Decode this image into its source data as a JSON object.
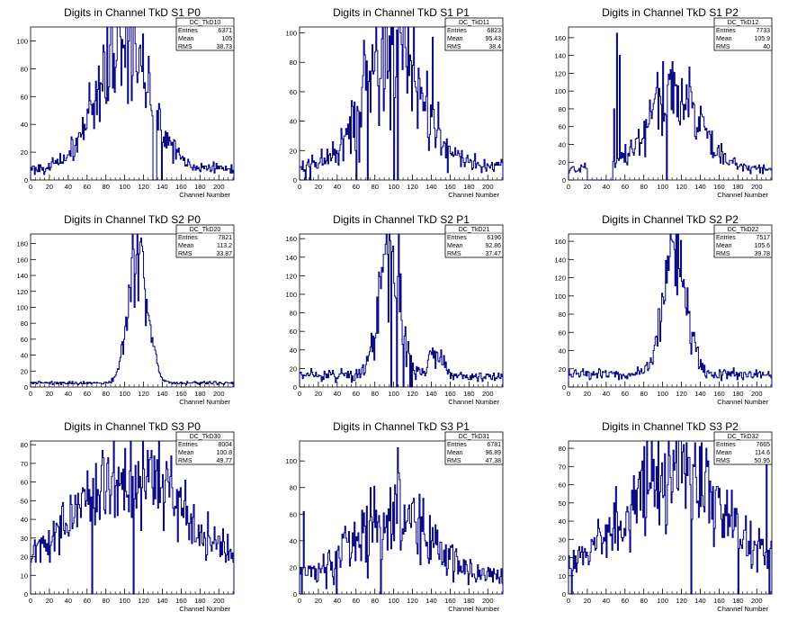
{
  "style": {
    "line_color": "#00007f",
    "axis_color": "#000000",
    "background": "#ffffff"
  },
  "chart_data": [
    {
      "type": "histogram",
      "title": "Digits in Channel TkD S1 P0",
      "xlabel": "Channel Number",
      "xlim": [
        0,
        216
      ],
      "ylim": [
        0,
        110
      ],
      "xticks": [
        0,
        20,
        40,
        60,
        80,
        100,
        120,
        140,
        160,
        180,
        200
      ],
      "yticks": [
        0,
        20,
        40,
        60,
        80,
        100
      ],
      "stats": {
        "name": "DC_TkD10",
        "entries": "6371",
        "mean": "105",
        "rms": "38.73"
      },
      "profile": {
        "bins": 216,
        "peaks": [
          [
            98,
            92,
            28
          ]
        ],
        "baseline": 8,
        "noise": 0.22,
        "spikes": [
          [
            128,
            50
          ],
          [
            136,
            55
          ]
        ],
        "zeros": [
          130,
          131,
          132,
          133,
          139
        ]
      }
    },
    {
      "type": "histogram",
      "title": "Digits in Channel TkD S1 P1",
      "xlabel": "Channel Number",
      "xlim": [
        0,
        216
      ],
      "ylim": [
        0,
        104
      ],
      "xticks": [
        0,
        20,
        40,
        60,
        80,
        100,
        120,
        140,
        160,
        180,
        200
      ],
      "yticks": [
        0,
        20,
        40,
        60,
        80,
        100
      ],
      "stats": {
        "name": "DC_TkD11",
        "entries": "6823",
        "mean": "95.43",
        "rms": "38.4"
      },
      "profile": {
        "bins": 216,
        "peaks": [
          [
            100,
            80,
            30
          ]
        ],
        "baseline": 10,
        "noise": 0.28,
        "spikes": [
          [
            141,
            97
          ],
          [
            98,
            92
          ]
        ],
        "zeros": [
          60,
          72,
          100,
          104,
          6,
          11
        ]
      }
    },
    {
      "type": "histogram",
      "title": "Digits in Channel TkD S1 P2",
      "xlabel": "Channel Number",
      "xlim": [
        0,
        216
      ],
      "ylim": [
        0,
        172
      ],
      "xticks": [
        0,
        20,
        40,
        60,
        80,
        100,
        120,
        140,
        160,
        180,
        200
      ],
      "yticks": [
        0,
        20,
        40,
        60,
        80,
        100,
        120,
        140,
        160
      ],
      "stats": {
        "name": "DC_TkD12",
        "entries": "7733",
        "mean": "105.9",
        "rms": "40"
      },
      "profile": {
        "bins": 216,
        "peaks": [
          [
            112,
            85,
            28
          ]
        ],
        "baseline": 12,
        "noise": 0.22,
        "spikes": [
          [
            51,
            165
          ],
          [
            54,
            140
          ],
          [
            48,
            80
          ]
        ],
        "zeros": [
          20,
          21,
          22,
          23,
          24,
          25,
          26,
          27,
          28,
          29,
          30,
          31,
          32,
          33,
          34,
          35,
          36,
          37,
          38,
          39,
          40,
          41,
          42,
          43,
          44,
          45,
          46,
          104
        ]
      }
    },
    {
      "type": "histogram",
      "title": "Digits in Channel TkD S2 P0",
      "xlabel": "Channel Number",
      "xlim": [
        0,
        216
      ],
      "ylim": [
        0,
        192
      ],
      "xticks": [
        0,
        20,
        40,
        60,
        80,
        100,
        120,
        140,
        160,
        180,
        200
      ],
      "yticks": [
        0,
        20,
        40,
        60,
        80,
        100,
        120,
        140,
        160,
        180
      ],
      "stats": {
        "name": "DC_TkD20",
        "entries": "7821",
        "mean": "113.2",
        "rms": "33.87"
      },
      "profile": {
        "bins": 216,
        "peaks": [
          [
            114,
            165,
            10
          ]
        ],
        "baseline": 5,
        "noise": 0.18,
        "spikes": [
          [
            116,
            182
          ]
        ],
        "zeros": []
      }
    },
    {
      "type": "histogram",
      "title": "Digits in Channel TkD S2 P1",
      "xlabel": "Channel Number",
      "xlim": [
        0,
        216
      ],
      "ylim": [
        0,
        165
      ],
      "xticks": [
        0,
        20,
        40,
        60,
        80,
        100,
        120,
        140,
        160,
        180,
        200
      ],
      "yticks": [
        0,
        20,
        40,
        60,
        80,
        100,
        120,
        140,
        160
      ],
      "stats": {
        "name": "DC_TkD21",
        "entries": "6196",
        "mean": "92.86",
        "rms": "37.47"
      },
      "profile": {
        "bins": 216,
        "peaks": [
          [
            95,
            140,
            11
          ],
          [
            145,
            30,
            7
          ]
        ],
        "baseline": 12,
        "noise": 0.25,
        "spikes": [
          [
            96,
            158
          ]
        ],
        "zeros": [
          97,
          103,
          110,
          117,
          119
        ]
      }
    },
    {
      "type": "histogram",
      "title": "Digits in Channel TkD S2 P2",
      "xlabel": "Channel Number",
      "xlim": [
        0,
        216
      ],
      "ylim": [
        0,
        168
      ],
      "xticks": [
        0,
        20,
        40,
        60,
        80,
        100,
        120,
        140,
        160,
        180,
        200
      ],
      "yticks": [
        0,
        20,
        40,
        60,
        80,
        100,
        120,
        140,
        160
      ],
      "stats": {
        "name": "DC_TkD22",
        "entries": "7517",
        "mean": "105.6",
        "rms": "39.78"
      },
      "profile": {
        "bins": 216,
        "peaks": [
          [
            112,
            148,
            12
          ]
        ],
        "baseline": 14,
        "noise": 0.2,
        "spikes": [
          [
            110,
            160
          ]
        ],
        "zeros": []
      }
    },
    {
      "type": "histogram",
      "title": "Digits in Channel TkD S3 P0",
      "xlabel": "Channel Number",
      "xlim": [
        0,
        216
      ],
      "ylim": [
        0,
        82
      ],
      "xticks": [
        0,
        20,
        40,
        60,
        80,
        100,
        120,
        140,
        160,
        180,
        200
      ],
      "yticks": [
        0,
        10,
        20,
        30,
        40,
        50,
        60,
        70,
        80
      ],
      "stats": {
        "name": "DC_TkD30",
        "entries": "8004",
        "mean": "100.8",
        "rms": "49.77"
      },
      "profile": {
        "bins": 216,
        "peaks": [
          [
            105,
            58,
            60
          ]
        ],
        "baseline": 8,
        "noise": 0.2,
        "spikes": [
          [
            100,
            78
          ]
        ],
        "zeros": [
          65,
          109
        ]
      }
    },
    {
      "type": "histogram",
      "title": "Digits in Channel TkD S3 P1",
      "xlabel": "Channel Number",
      "xlim": [
        0,
        216
      ],
      "ylim": [
        0,
        115
      ],
      "xticks": [
        0,
        20,
        40,
        60,
        80,
        100,
        120,
        140,
        160,
        180,
        200
      ],
      "yticks": [
        0,
        20,
        40,
        60,
        80,
        100
      ],
      "stats": {
        "name": "DC_TkD31",
        "entries": "6781",
        "mean": "96.89",
        "rms": "47.38"
      },
      "profile": {
        "bins": 216,
        "peaks": [
          [
            100,
            48,
            40
          ]
        ],
        "baseline": 12,
        "noise": 0.28,
        "spikes": [
          [
            104,
            110
          ],
          [
            4,
            62
          ]
        ],
        "zeros": [
          39,
          86,
          2
        ]
      }
    },
    {
      "type": "histogram",
      "title": "Digits in Channel TkD S3 P2",
      "xlabel": "Channel Number",
      "xlim": [
        0,
        216
      ],
      "ylim": [
        0,
        84
      ],
      "xticks": [
        0,
        20,
        40,
        60,
        80,
        100,
        120,
        140,
        160,
        180,
        200
      ],
      "yticks": [
        0,
        10,
        20,
        30,
        40,
        50,
        60,
        70,
        80
      ],
      "stats": {
        "name": "DC_TkD32",
        "entries": "7665",
        "mean": "114.6",
        "rms": "50.95"
      },
      "profile": {
        "bins": 216,
        "peaks": [
          [
            115,
            55,
            55
          ]
        ],
        "baseline": 10,
        "noise": 0.25,
        "spikes": [
          [
            210,
            78
          ],
          [
            121,
            78
          ]
        ],
        "zeros": [
          130,
          180,
          213,
          3
        ]
      }
    }
  ]
}
